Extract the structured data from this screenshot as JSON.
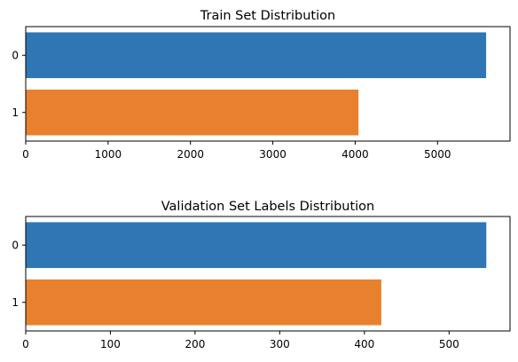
{
  "chart_data": [
    {
      "type": "bar",
      "orientation": "horizontal",
      "title": "Train Set Distribution",
      "categories": [
        "0",
        "1"
      ],
      "values": [
        5590,
        4040
      ],
      "colors": [
        "#2f77b4",
        "#e8812e"
      ],
      "xlim": [
        0,
        5880
      ],
      "xticks": [
        0,
        1000,
        2000,
        3000,
        4000,
        5000
      ],
      "xlabel": "",
      "ylabel": "",
      "grid": false
    },
    {
      "type": "bar",
      "orientation": "horizontal",
      "title": "Validation Set Labels Distribution",
      "categories": [
        "0",
        "1"
      ],
      "values": [
        544,
        420
      ],
      "colors": [
        "#2f77b4",
        "#e8812e"
      ],
      "xlim": [
        0,
        572
      ],
      "xticks": [
        0,
        100,
        200,
        300,
        400,
        500
      ],
      "xlabel": "",
      "ylabel": "",
      "grid": false
    }
  ]
}
